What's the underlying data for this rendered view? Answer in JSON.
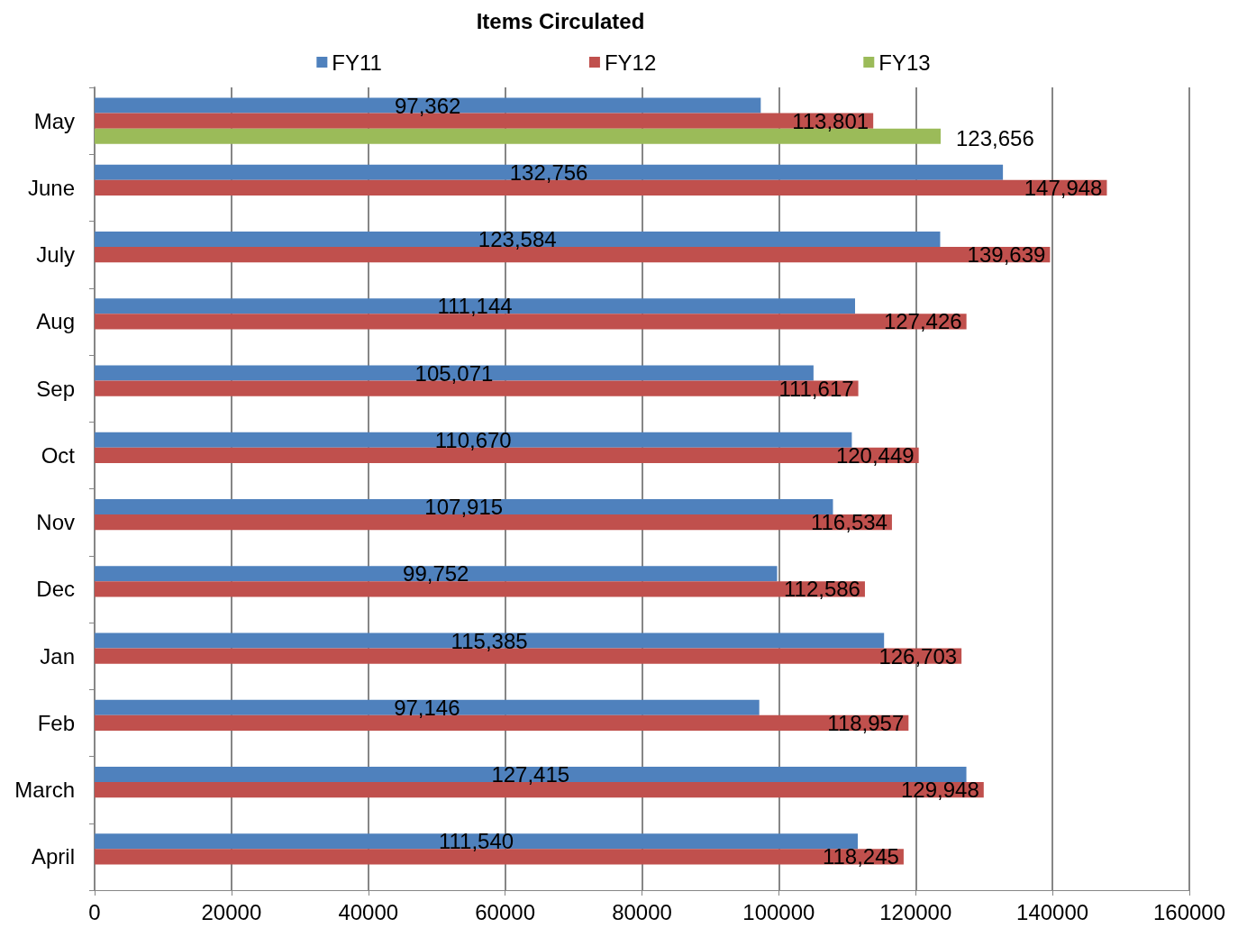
{
  "chart_data": {
    "type": "bar",
    "orientation": "horizontal",
    "title": "Items Circulated",
    "categories": [
      "May",
      "June",
      "July",
      "Aug",
      "Sep",
      "Oct",
      "Nov",
      "Dec",
      "Jan",
      "Feb",
      "March",
      "April"
    ],
    "series": [
      {
        "name": "FY11",
        "color": "#4f81bd",
        "values": [
          97362,
          132756,
          123584,
          111144,
          105071,
          110670,
          107915,
          99752,
          115385,
          97146,
          127415,
          111540
        ],
        "value_labels": [
          "97,362",
          "132,756",
          "123,584",
          "111,144",
          "105,071",
          "110,670",
          "107,915",
          "99,752",
          "115,385",
          "97,146",
          "127,415",
          "111,540"
        ]
      },
      {
        "name": "FY12",
        "color": "#c0504d",
        "values": [
          113801,
          147948,
          139639,
          127426,
          111617,
          120449,
          116534,
          112586,
          126703,
          118957,
          129948,
          118245
        ],
        "value_labels": [
          "113,801",
          "147,948",
          "139,639",
          "127,426",
          "111,617",
          "120,449",
          "116,534",
          "112,586",
          "126,703",
          "118,957",
          "129,948",
          "118,245"
        ]
      },
      {
        "name": "FY13",
        "color": "#9bbb59",
        "values": [
          123656,
          null,
          null,
          null,
          null,
          null,
          null,
          null,
          null,
          null,
          null,
          null
        ],
        "value_labels": [
          "123,656",
          null,
          null,
          null,
          null,
          null,
          null,
          null,
          null,
          null,
          null,
          null
        ]
      }
    ],
    "xlim": [
      0,
      160000
    ],
    "xticks": [
      0,
      20000,
      40000,
      60000,
      80000,
      100000,
      120000,
      140000,
      160000
    ],
    "grid": "x",
    "legend": "top"
  }
}
